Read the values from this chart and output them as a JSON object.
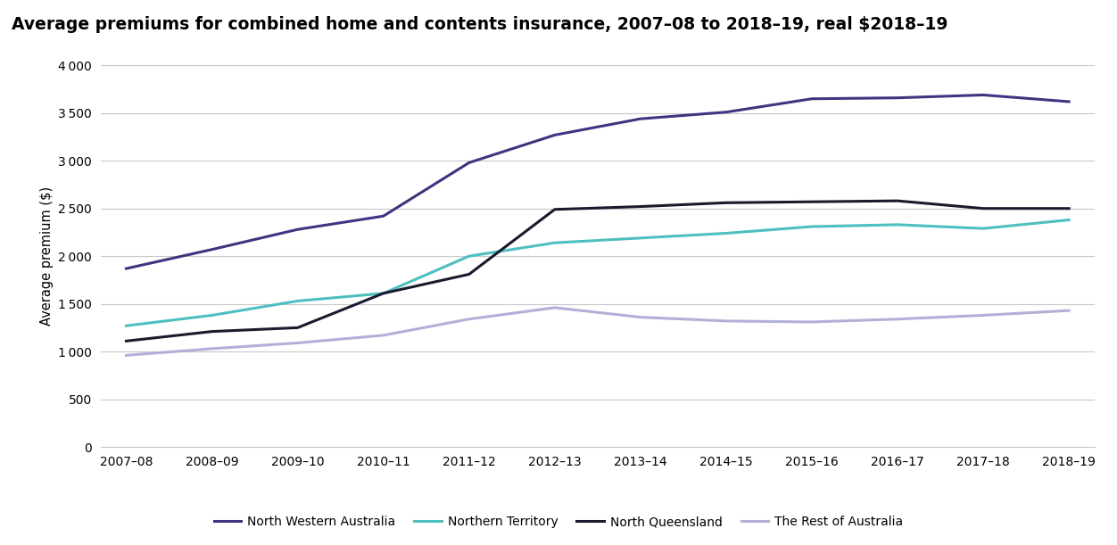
{
  "title": "Average premiums for combined home and contents insurance, 2007–08 to 2018–19, real $2018–19",
  "ylabel": "Average premium ($)",
  "ylim": [
    0,
    4000
  ],
  "yticks": [
    0,
    500,
    1000,
    1500,
    2000,
    2500,
    3000,
    3500,
    4000
  ],
  "x_labels": [
    "2007–08",
    "2008–09",
    "2009–10",
    "2010–11",
    "2011–12",
    "2012–13",
    "2013–14",
    "2014–15",
    "2015–16",
    "2016–17",
    "2017–18",
    "2018–19"
  ],
  "series": [
    {
      "name": "North Western Australia",
      "color": "#3d3580",
      "values": [
        1870,
        2070,
        2280,
        2420,
        2980,
        3270,
        3440,
        3510,
        3650,
        3660,
        3690,
        3620
      ]
    },
    {
      "name": "Northern Territory",
      "color": "#4dbfbf",
      "values": [
        1270,
        1380,
        1530,
        1610,
        2000,
        2140,
        2190,
        2240,
        2310,
        2330,
        2290,
        2380
      ]
    },
    {
      "name": "North Queensland",
      "color": "#1a1a2e",
      "values": [
        1110,
        1210,
        1250,
        1610,
        1810,
        2490,
        2520,
        2560,
        2570,
        2580,
        2500,
        2500
      ]
    },
    {
      "name": "The Rest of Australia",
      "color": "#b0b0d8",
      "values": [
        960,
        1030,
        1090,
        1170,
        1340,
        1460,
        1360,
        1320,
        1310,
        1340,
        1380,
        1430
      ]
    }
  ],
  "background_color": "#ffffff",
  "grid_color": "#c8c8c8",
  "title_fontsize": 13.5,
  "label_fontsize": 10.5,
  "tick_fontsize": 10,
  "legend_fontsize": 10,
  "line_width": 2.2
}
